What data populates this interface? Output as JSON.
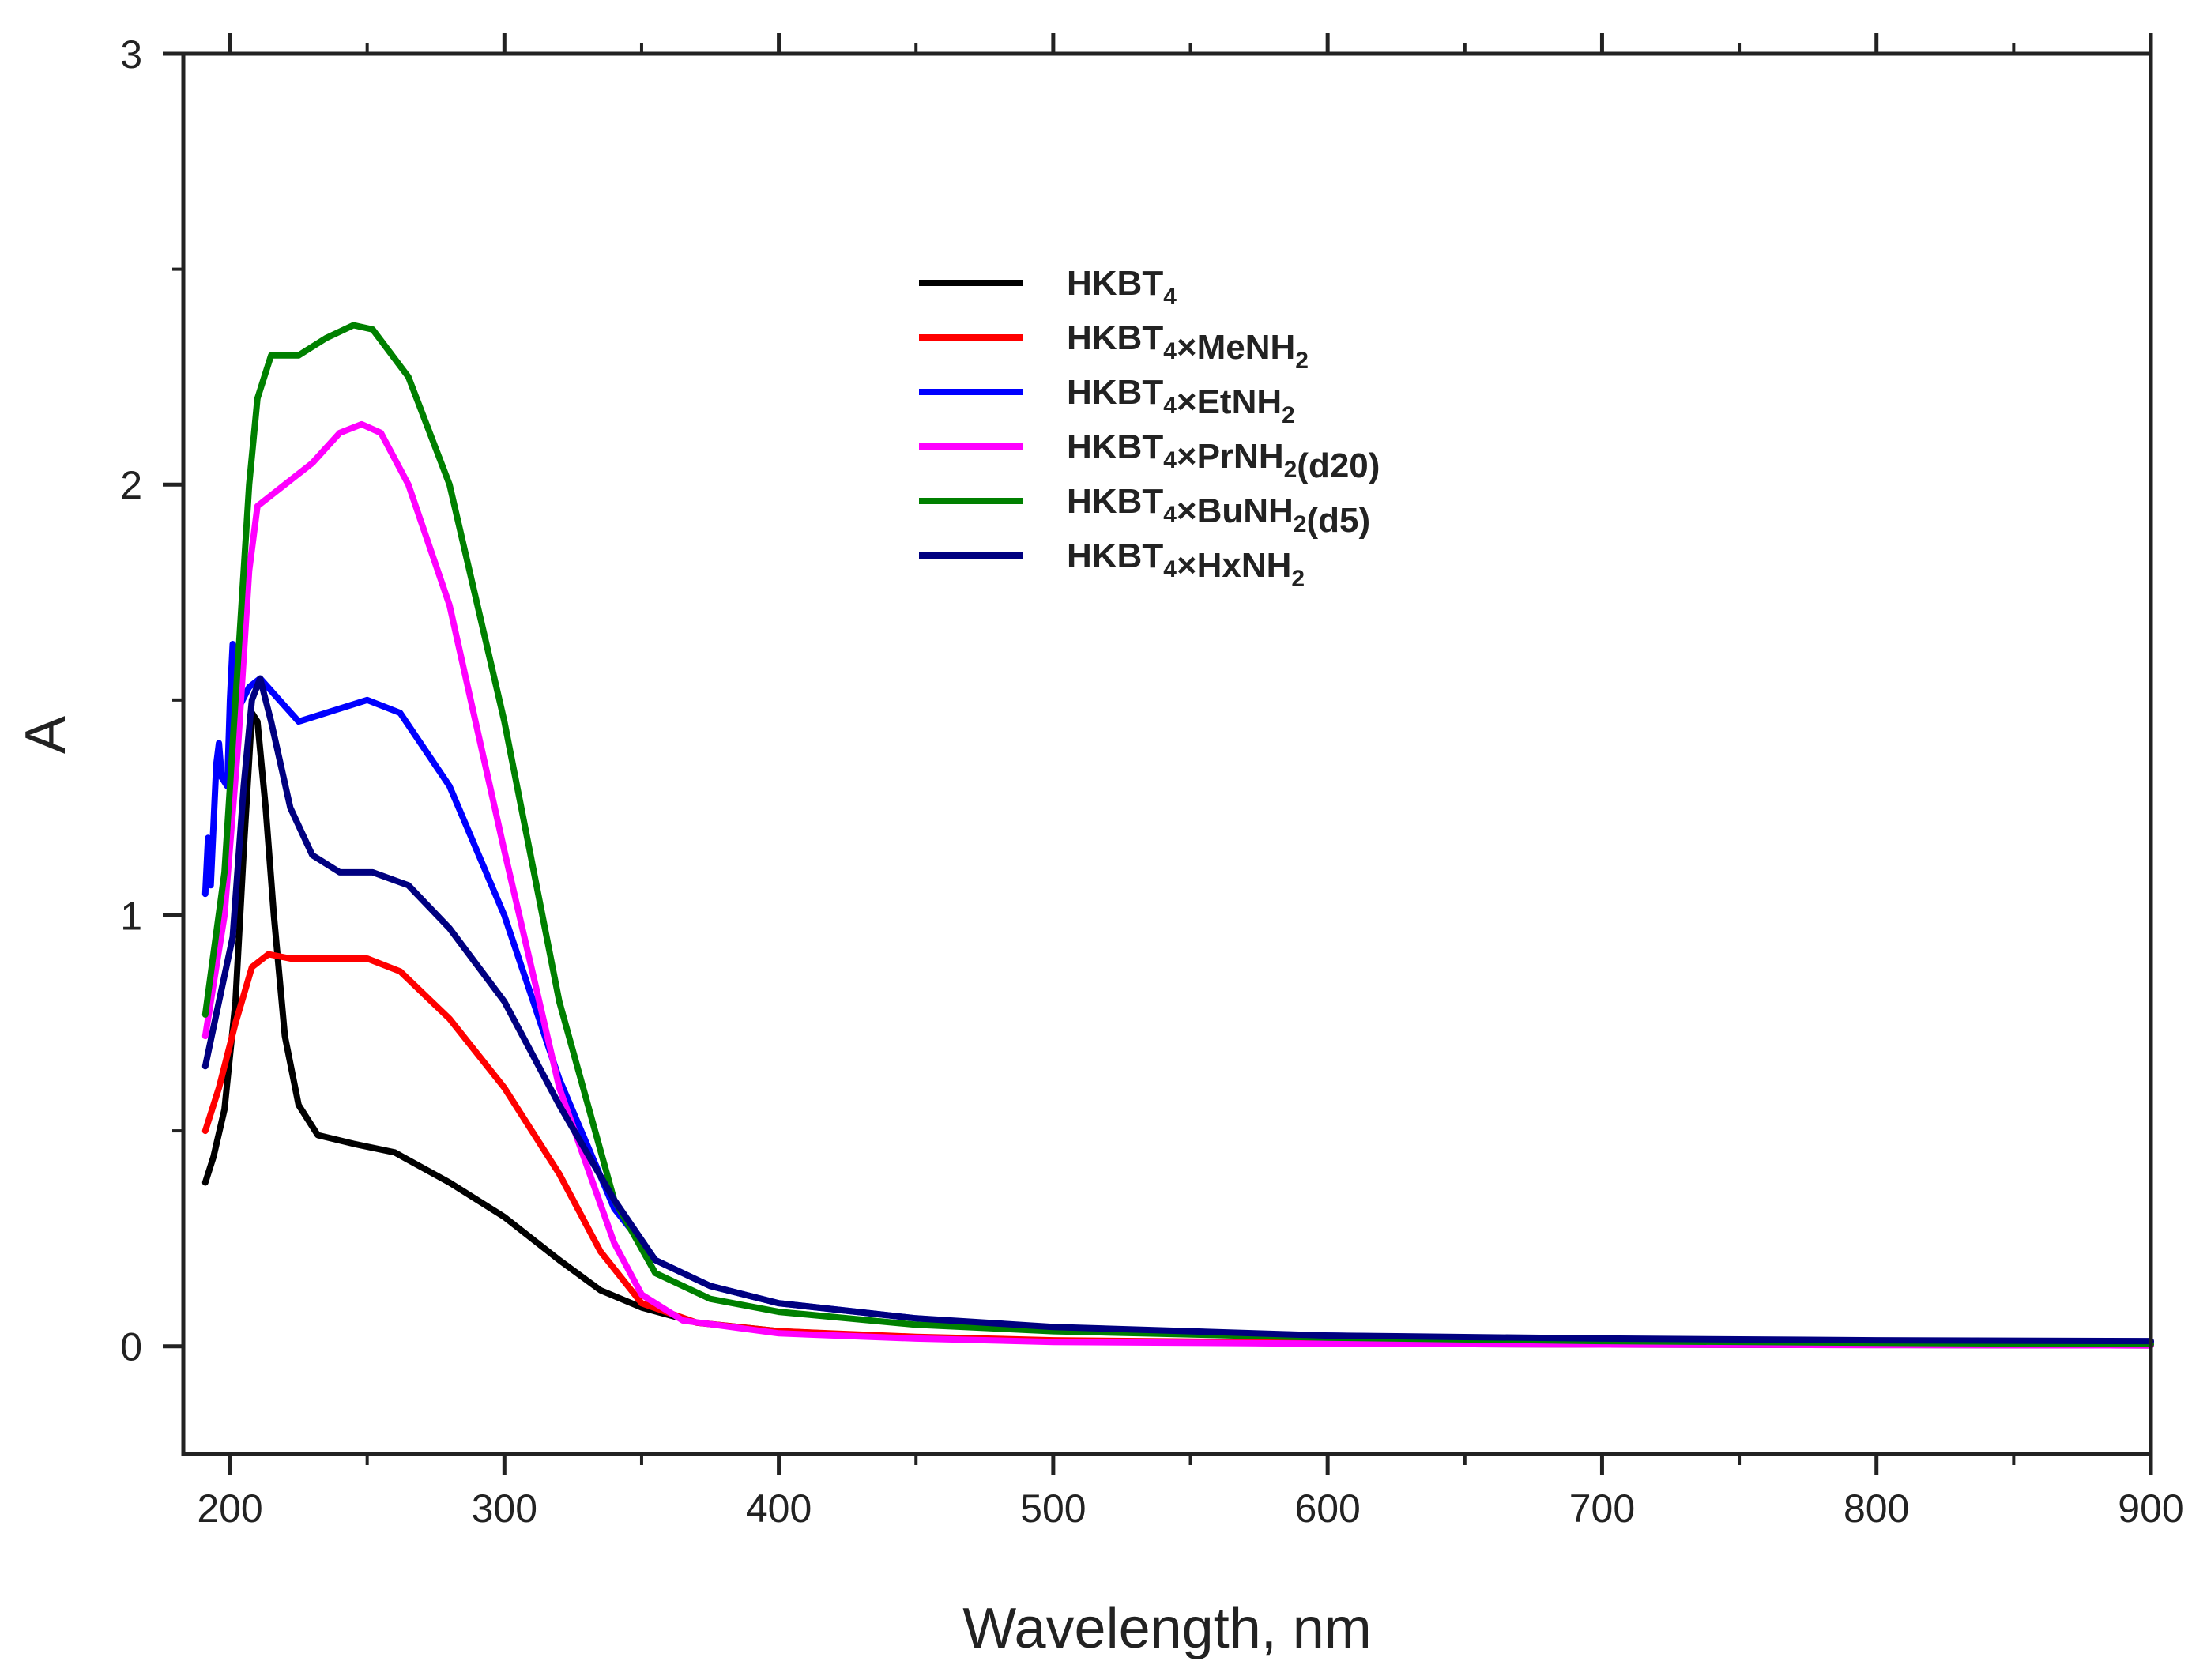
{
  "chart_data": {
    "type": "line",
    "title": "",
    "xlabel": "Wavelength, nm",
    "ylabel": "A",
    "xlim": [
      183,
      900
    ],
    "ylim": [
      -0.25,
      3
    ],
    "x_ticks": [
      200,
      300,
      400,
      500,
      600,
      700,
      800,
      900
    ],
    "y_ticks": [
      0,
      1,
      2,
      3
    ],
    "grid": false,
    "legend_placement": "upper-center",
    "series": [
      {
        "name": "HKBT4",
        "label_parts": [
          [
            "HKBT",
            ""
          ],
          [
            "4",
            "sub"
          ]
        ],
        "color": "#000000",
        "points": [
          [
            191,
            0.38
          ],
          [
            194,
            0.44
          ],
          [
            198,
            0.55
          ],
          [
            202,
            0.8
          ],
          [
            205,
            1.15
          ],
          [
            208,
            1.47
          ],
          [
            210,
            1.45
          ],
          [
            213,
            1.25
          ],
          [
            216,
            1.0
          ],
          [
            220,
            0.72
          ],
          [
            225,
            0.56
          ],
          [
            232,
            0.49
          ],
          [
            245,
            0.47
          ],
          [
            260,
            0.45
          ],
          [
            280,
            0.38
          ],
          [
            300,
            0.3
          ],
          [
            320,
            0.2
          ],
          [
            335,
            0.13
          ],
          [
            350,
            0.09
          ],
          [
            370,
            0.055
          ],
          [
            400,
            0.035
          ],
          [
            450,
            0.02
          ],
          [
            500,
            0.012
          ],
          [
            600,
            0.006
          ],
          [
            700,
            0.004
          ],
          [
            800,
            0.003
          ],
          [
            900,
            0.002
          ]
        ]
      },
      {
        "name": "HKBT4×MeNH2",
        "label_parts": [
          [
            "HKBT",
            ""
          ],
          [
            "4",
            "sub"
          ],
          [
            "×MeNH",
            ""
          ],
          [
            "2",
            "sub"
          ]
        ],
        "color": "#ff0000",
        "points": [
          [
            191,
            0.5
          ],
          [
            196,
            0.6
          ],
          [
            202,
            0.75
          ],
          [
            208,
            0.88
          ],
          [
            214,
            0.91
          ],
          [
            222,
            0.9
          ],
          [
            235,
            0.9
          ],
          [
            250,
            0.9
          ],
          [
            262,
            0.87
          ],
          [
            280,
            0.76
          ],
          [
            300,
            0.6
          ],
          [
            320,
            0.4
          ],
          [
            335,
            0.22
          ],
          [
            350,
            0.1
          ],
          [
            370,
            0.055
          ],
          [
            400,
            0.035
          ],
          [
            450,
            0.022
          ],
          [
            500,
            0.014
          ],
          [
            600,
            0.008
          ],
          [
            700,
            0.005
          ],
          [
            800,
            0.004
          ],
          [
            900,
            0.003
          ]
        ]
      },
      {
        "name": "HKBT4×EtNH2",
        "label_parts": [
          [
            "HKBT",
            ""
          ],
          [
            "4",
            "sub"
          ],
          [
            "×EtNH",
            ""
          ],
          [
            "2",
            "sub"
          ]
        ],
        "color": "#0000ff",
        "points": [
          [
            191,
            1.05
          ],
          [
            192,
            1.18
          ],
          [
            193,
            1.07
          ],
          [
            195,
            1.35
          ],
          [
            196,
            1.4
          ],
          [
            197,
            1.32
          ],
          [
            199,
            1.3
          ],
          [
            200,
            1.5
          ],
          [
            201,
            1.63
          ],
          [
            203,
            1.48
          ],
          [
            207,
            1.53
          ],
          [
            211,
            1.55
          ],
          [
            218,
            1.5
          ],
          [
            225,
            1.45
          ],
          [
            235,
            1.47
          ],
          [
            250,
            1.5
          ],
          [
            262,
            1.47
          ],
          [
            280,
            1.3
          ],
          [
            300,
            1.0
          ],
          [
            320,
            0.62
          ],
          [
            340,
            0.32
          ],
          [
            355,
            0.2
          ],
          [
            375,
            0.14
          ],
          [
            400,
            0.1
          ],
          [
            450,
            0.065
          ],
          [
            500,
            0.04
          ],
          [
            600,
            0.025
          ],
          [
            700,
            0.015
          ],
          [
            800,
            0.012
          ],
          [
            900,
            0.01
          ]
        ]
      },
      {
        "name": "HKBT4×PrNH2(d20)",
        "label_parts": [
          [
            "HKBT",
            ""
          ],
          [
            "4",
            "sub"
          ],
          [
            "×PrNH",
            ""
          ],
          [
            "2",
            "sub"
          ],
          [
            "(d20)",
            ""
          ]
        ],
        "color": "#ff00ff",
        "points": [
          [
            191,
            0.72
          ],
          [
            198,
            1.0
          ],
          [
            203,
            1.4
          ],
          [
            207,
            1.8
          ],
          [
            210,
            1.95
          ],
          [
            220,
            2.0
          ],
          [
            230,
            2.05
          ],
          [
            240,
            2.12
          ],
          [
            248,
            2.14
          ],
          [
            255,
            2.12
          ],
          [
            265,
            2.0
          ],
          [
            280,
            1.72
          ],
          [
            300,
            1.15
          ],
          [
            320,
            0.6
          ],
          [
            340,
            0.24
          ],
          [
            350,
            0.12
          ],
          [
            365,
            0.06
          ],
          [
            400,
            0.03
          ],
          [
            450,
            0.018
          ],
          [
            500,
            0.01
          ],
          [
            600,
            0.006
          ],
          [
            700,
            0.004
          ],
          [
            800,
            0.003
          ],
          [
            900,
            0.002
          ]
        ]
      },
      {
        "name": "HKBT4×BuNH2(d5)",
        "label_parts": [
          [
            "HKBT",
            ""
          ],
          [
            "4",
            "sub"
          ],
          [
            "×BuNH",
            ""
          ],
          [
            "2",
            "sub"
          ],
          [
            "(d5)",
            ""
          ]
        ],
        "color": "#008000",
        "points": [
          [
            191,
            0.77
          ],
          [
            198,
            1.1
          ],
          [
            203,
            1.6
          ],
          [
            207,
            2.0
          ],
          [
            210,
            2.2
          ],
          [
            215,
            2.3
          ],
          [
            225,
            2.3
          ],
          [
            235,
            2.34
          ],
          [
            245,
            2.37
          ],
          [
            252,
            2.36
          ],
          [
            265,
            2.25
          ],
          [
            280,
            2.0
          ],
          [
            300,
            1.45
          ],
          [
            320,
            0.8
          ],
          [
            340,
            0.34
          ],
          [
            355,
            0.17
          ],
          [
            375,
            0.11
          ],
          [
            400,
            0.08
          ],
          [
            450,
            0.05
          ],
          [
            500,
            0.035
          ],
          [
            600,
            0.02
          ],
          [
            700,
            0.012
          ],
          [
            800,
            0.008
          ],
          [
            900,
            0.005
          ]
        ]
      },
      {
        "name": "HKBT4×HxNH2",
        "label_parts": [
          [
            "HKBT",
            ""
          ],
          [
            "4",
            "sub"
          ],
          [
            "×HxNH",
            ""
          ],
          [
            "2",
            "sub"
          ]
        ],
        "color": "#000080",
        "points": [
          [
            191,
            0.65
          ],
          [
            196,
            0.8
          ],
          [
            201,
            0.95
          ],
          [
            205,
            1.3
          ],
          [
            208,
            1.5
          ],
          [
            211,
            1.55
          ],
          [
            215,
            1.45
          ],
          [
            222,
            1.25
          ],
          [
            230,
            1.14
          ],
          [
            240,
            1.1
          ],
          [
            252,
            1.1
          ],
          [
            265,
            1.07
          ],
          [
            280,
            0.97
          ],
          [
            300,
            0.8
          ],
          [
            320,
            0.56
          ],
          [
            340,
            0.34
          ],
          [
            355,
            0.2
          ],
          [
            375,
            0.14
          ],
          [
            400,
            0.1
          ],
          [
            450,
            0.065
          ],
          [
            500,
            0.045
          ],
          [
            600,
            0.025
          ],
          [
            700,
            0.018
          ],
          [
            800,
            0.014
          ],
          [
            900,
            0.012
          ]
        ]
      }
    ]
  }
}
